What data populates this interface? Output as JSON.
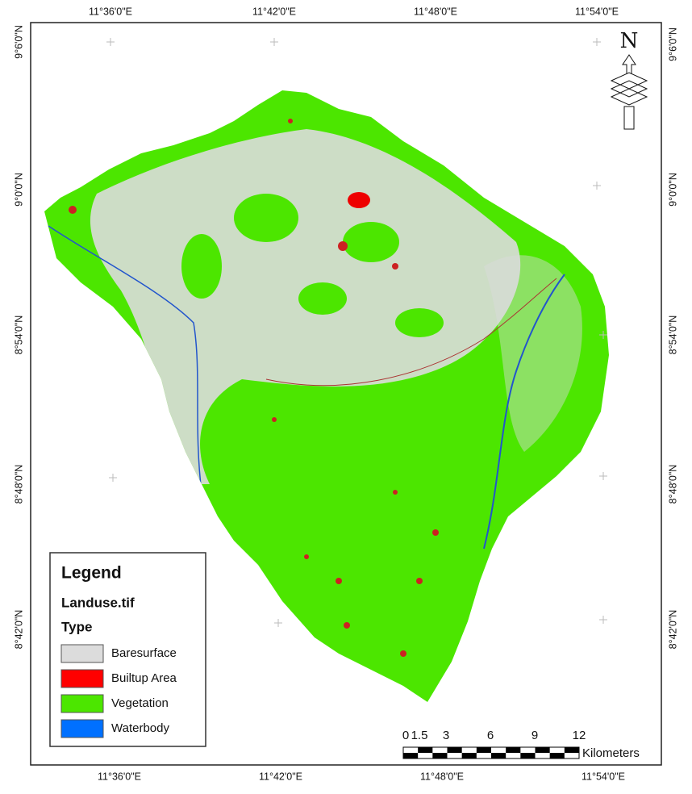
{
  "map": {
    "top_labels": [
      "11°36'0\"E",
      "11°42'0\"E",
      "11°48'0\"E",
      "11°54'0\"E"
    ],
    "bottom_labels": [
      "11°36'0\"E",
      "11°42'0\"E",
      "11°48'0\"E",
      "11°54'0\"E"
    ],
    "left_labels": [
      "9°6'0\"N",
      "9°0'0\"N",
      "8°54'0\"N",
      "8°48'0\"N",
      "8°42'0\"N"
    ],
    "right_labels": [
      "9°6'0\"N",
      "9°0'0\"N",
      "8°54'0\"N",
      "8°48'0\"N",
      "8°42'0\"N"
    ],
    "north": "N",
    "legend": {
      "title": "Legend",
      "layer": "Landuse.tif",
      "field": "Type",
      "items": [
        {
          "label": "Baresurface",
          "color": "#dcdcdc"
        },
        {
          "label": "Builtup Area",
          "color": "#ff0000"
        },
        {
          "label": "Vegetation",
          "color": "#4ce600"
        },
        {
          "label": "Waterbody",
          "color": "#0070ff"
        }
      ]
    },
    "scale": {
      "labels": [
        "0",
        "1.5",
        "3",
        "6",
        "9",
        "12"
      ],
      "unit": "Kilometers"
    }
  }
}
